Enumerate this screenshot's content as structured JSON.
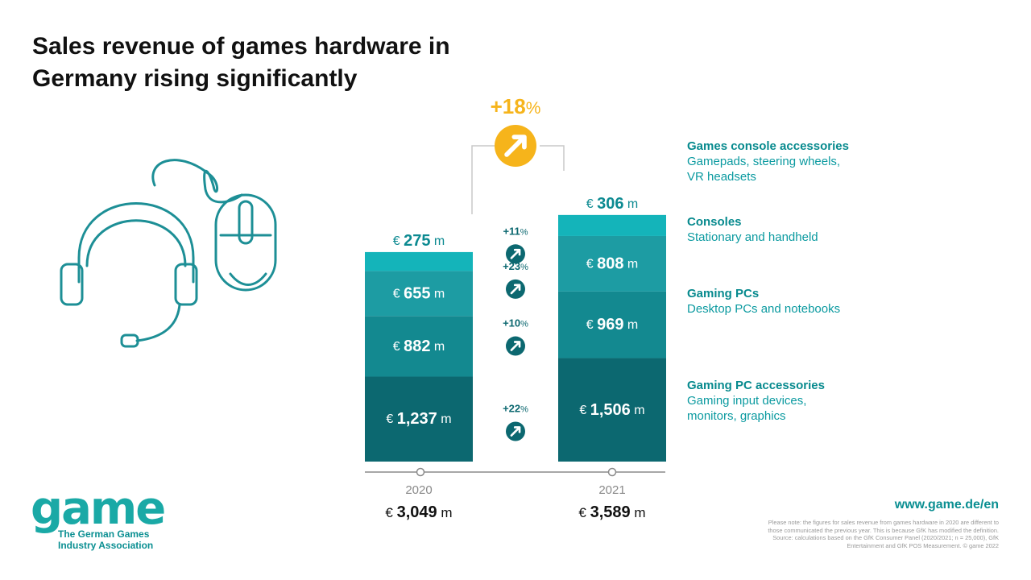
{
  "title": {
    "line1": "Sales revenue of games hardware in",
    "line2": "Germany rising significantly"
  },
  "chart_data": {
    "type": "bar",
    "stacked": true,
    "categories": [
      "2020",
      "2021"
    ],
    "series": [
      {
        "name": "Gaming PC accessories",
        "values": [
          1237,
          1506
        ],
        "labels": [
          "1,237",
          "1,506"
        ],
        "color": "#0c6870"
      },
      {
        "name": "Gaming PCs",
        "values": [
          882,
          969
        ],
        "labels": [
          "882",
          "969"
        ],
        "color": "#138990"
      },
      {
        "name": "Consoles",
        "values": [
          655,
          808
        ],
        "labels": [
          "655",
          "808"
        ],
        "color": "#1d9ca3"
      },
      {
        "name": "Games console accessories",
        "values": [
          275,
          306
        ],
        "labels": [
          "275",
          "306"
        ],
        "color": "#14b4ba"
      }
    ],
    "totals": [
      "3,049",
      "3,589"
    ],
    "currency_symbol": "€",
    "unit": "m",
    "growth": {
      "total": "+18",
      "segments": [
        "+22",
        "+10",
        "+23",
        "+11"
      ],
      "percent_sign": "%"
    },
    "colors": {
      "growth_total": "#f6b41b",
      "growth_segment": "#0c6870",
      "year_label": "#8a8a8a"
    }
  },
  "legend": [
    {
      "title": "Games console accessories",
      "desc": [
        "Gamepads, steering wheels,",
        "VR headsets"
      ]
    },
    {
      "title": "Consoles",
      "desc": [
        "Stationary and handheld"
      ]
    },
    {
      "title": "Gaming PCs",
      "desc": [
        "Desktop PCs and notebooks"
      ]
    },
    {
      "title": "Gaming PC accessories",
      "desc": [
        "Gaming input devices,",
        "monitors, graphics"
      ]
    }
  ],
  "logo": {
    "word": "game",
    "line1": "The German Games",
    "line2": "Industry Association"
  },
  "url": "www.game.de/en",
  "note": [
    "Please note: the figures for sales revenue from games hardware in 2020 are different to",
    "those communicated the previous year. This is because GfK has modified the definition.",
    "Source: calculations based on the GfK Consumer Panel (2020/2021; n = 25,000), GfK",
    "Entertainment and GfK POS Measurement. © game 2022"
  ],
  "icons": [
    "headset-icon",
    "mouse-icon",
    "arrow-up-right-icon"
  ]
}
